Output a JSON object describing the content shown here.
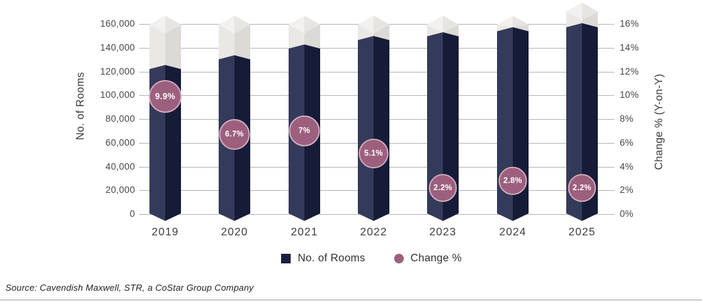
{
  "chart_data": {
    "type": "bar",
    "title": "",
    "categories": [
      "2019",
      "2020",
      "2021",
      "2022",
      "2023",
      "2024",
      "2025"
    ],
    "series": [
      {
        "name": "No. of Rooms",
        "type": "bar",
        "axis": "left",
        "values": [
          122000,
          130200,
          139300,
          146400,
          149600,
          153800,
          157200
        ]
      },
      {
        "name": "Change %",
        "type": "bubble",
        "axis": "right",
        "values": [
          9.9,
          6.7,
          7.0,
          5.1,
          2.2,
          2.8,
          2.2
        ],
        "labels": [
          "9.9%",
          "6.7%",
          "7%",
          "5.1%",
          "2.2%",
          "2.8%",
          "2.2%"
        ]
      }
    ],
    "decorative_cap_top_rooms": [
      167000,
      167000,
      167000,
      167000,
      167000,
      167000,
      178000
    ],
    "xlabel": "",
    "ylabel_left": "No. of Rooms",
    "ylabel_right": "Change % (Y-on-Y)",
    "ylim_left": [
      0,
      160000
    ],
    "ylim_right_pct": [
      0,
      16
    ],
    "yticks_left": [
      "0",
      "20,000",
      "40,000",
      "60,000",
      "80,000",
      "100,000",
      "120,000",
      "140,000",
      "160,000"
    ],
    "yticks_right": [
      "0%",
      "2%",
      "4%",
      "6%",
      "8%",
      "10%",
      "12%",
      "14%",
      "16%"
    ],
    "grid": "horizontal",
    "legend_position": "bottom"
  },
  "legend": {
    "items": [
      {
        "label": "No. of Rooms",
        "swatch": "square",
        "color": "#1b2040"
      },
      {
        "label": "Change %",
        "swatch": "circle",
        "color": "#9d5f7e"
      }
    ]
  },
  "source": "Source: Cavendish Maxwell, STR, a CoStar Group Company",
  "colors": {
    "bar_left_face": "#343a59",
    "bar_right_face": "#161b38",
    "cap_body_left": "#e9e8e5",
    "cap_body_right": "#dbdad6",
    "cap_top_left": "#f2f1ef",
    "cap_top_right": "#e6e5e2",
    "bubble_fill": "#9d5f7e",
    "bubble_ring": "#d4afc1",
    "bubble_text": "#ffffff",
    "gridline": "#b5b5b5",
    "tick_text": "#454545",
    "axis_title_text": "#3a3a3a",
    "source_text": "#1f1f1f",
    "bottom_rule": "#d8d8d7"
  }
}
